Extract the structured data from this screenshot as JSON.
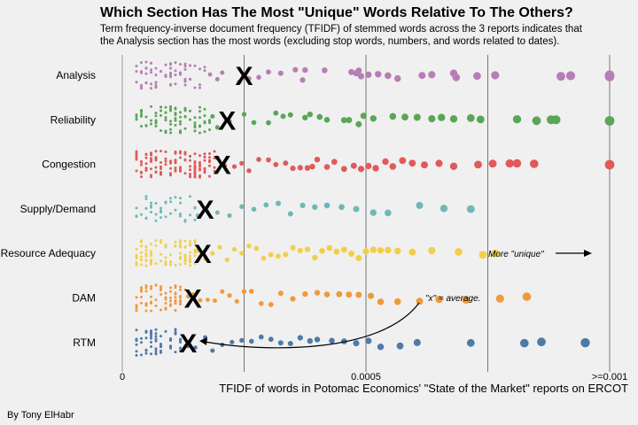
{
  "chart_data": {
    "type": "scatter",
    "title": "Which Section Has The Most \"Unique\" Words Relative To The Others?",
    "subtitle": [
      "Term frequency-inverse document frequency (TFIDF) of stemmed words across the 3 reports indicates that",
      "the Analysis section has the most words (excluding stop words, numbers, and words related to dates)."
    ],
    "xlabel": "TFIDF of words in Potomac Economics' \"State of the Market\" reports on ERCOT",
    "caption": "By Tony ElHabr",
    "xlim": [
      0,
      0.001
    ],
    "x_ticks": [
      {
        "value": 0,
        "label": "0"
      },
      {
        "value": 0.0005,
        "label": "0.0005"
      },
      {
        "value": 0.001,
        "label": ">=0.001"
      }
    ],
    "x_gridlines": [
      0.00025,
      0.0005,
      0.00075,
      0.001
    ],
    "annotations": [
      {
        "text": "More \"unique\"",
        "x": 0.00075,
        "category": "Resource Adequacy"
      },
      {
        "text": "\"x\" = average.",
        "x": 0.000618,
        "category": "DAM"
      }
    ],
    "mean_marker": "X",
    "series": [
      {
        "category": "Analysis",
        "color": "#b77eb5",
        "mean": 0.00025,
        "low_range": [
          2.5e-05,
          0.00017
        ],
        "low_count": 70,
        "x": [
          0.00018,
          0.000195,
          0.000205,
          0.00024,
          0.00026,
          0.00028,
          0.0003,
          0.000325,
          0.000355,
          0.00037,
          0.000375,
          0.000415,
          0.00047,
          0.00048,
          0.000485,
          0.00049,
          0.000505,
          0.000525,
          0.000545,
          0.000565,
          0.000615,
          0.000635,
          0.00068,
          0.000685,
          0.000728,
          0.000765,
          0.0009,
          0.00092,
          0.001,
          0.001
        ]
      },
      {
        "category": "Reliability",
        "color": "#5ba557",
        "mean": 0.000215,
        "low_range": [
          2.5e-05,
          0.00018
        ],
        "low_count": 90,
        "x": [
          0.000185,
          0.000195,
          0.00022,
          0.00025,
          0.00027,
          0.0003,
          0.000315,
          0.00033,
          0.000345,
          0.000375,
          0.000385,
          0.000405,
          0.00042,
          0.000455,
          0.000465,
          0.000485,
          0.000495,
          0.000515,
          0.000555,
          0.00058,
          0.000605,
          0.000635,
          0.000655,
          0.00068,
          0.000715,
          0.000735,
          0.00081,
          0.00085,
          0.00088,
          0.00089,
          0.001
        ]
      },
      {
        "category": "Congestion",
        "color": "#e05a5a",
        "mean": 0.000205,
        "low_range": [
          2.5e-05,
          0.00019
        ],
        "low_count": 130,
        "x": [
          0.000195,
          0.00021,
          0.00023,
          0.000245,
          0.00026,
          0.00028,
          0.0003,
          0.000315,
          0.000335,
          0.00035,
          0.000365,
          0.00038,
          0.00039,
          0.0004,
          0.00042,
          0.000435,
          0.000455,
          0.000475,
          0.00049,
          0.000505,
          0.00052,
          0.00054,
          0.000555,
          0.000575,
          0.000595,
          0.00062,
          0.00065,
          0.00068,
          0.00073,
          0.00076,
          0.000795,
          0.00081,
          0.000845,
          0.001
        ]
      },
      {
        "category": "Supply/Demand",
        "color": "#6fb8b7",
        "mean": 0.00017,
        "low_range": [
          2.5e-05,
          0.00015
        ],
        "low_count": 40,
        "x": [
          0.000155,
          0.000175,
          0.000195,
          0.00022,
          0.000245,
          0.00027,
          0.000295,
          0.00032,
          0.000345,
          0.00037,
          0.000395,
          0.00042,
          0.00045,
          0.00048,
          0.000515,
          0.000545,
          0.00061,
          0.00066,
          0.000715
        ]
      },
      {
        "category": "Resource Adequacy",
        "color": "#f2cf4a",
        "mean": 0.000165,
        "low_range": [
          2.5e-05,
          0.00015
        ],
        "low_count": 90,
        "x": [
          0.000155,
          0.00017,
          0.000185,
          0.0002,
          0.000215,
          0.00023,
          0.000245,
          0.00026,
          0.000275,
          0.00029,
          0.000305,
          0.00032,
          0.000335,
          0.00035,
          0.000365,
          0.00038,
          0.000395,
          0.00041,
          0.000425,
          0.00044,
          0.000455,
          0.00047,
          0.000485,
          0.0005,
          0.000515,
          0.00053,
          0.000545,
          0.000565,
          0.000595,
          0.000635,
          0.00069,
          0.00074,
          0.000765
        ]
      },
      {
        "category": "DAM",
        "color": "#ef9a3b",
        "mean": 0.000145,
        "low_range": [
          2.5e-05,
          0.00013
        ],
        "low_count": 65,
        "x": [
          0.000135,
          0.000145,
          0.00016,
          0.000175,
          0.00019,
          0.000205,
          0.00022,
          0.000235,
          0.00025,
          0.000265,
          0.000285,
          0.000305,
          0.000325,
          0.00035,
          0.000375,
          0.0004,
          0.00042,
          0.000445,
          0.000465,
          0.000485,
          0.00051,
          0.00053,
          0.000565,
          0.00061,
          0.00065,
          0.000705,
          0.000775,
          0.00083
        ]
      },
      {
        "category": "RTM",
        "color": "#4f7aa8",
        "mean": 0.000135,
        "low_range": [
          2.5e-05,
          0.000125
        ],
        "low_count": 60,
        "x": [
          0.000135,
          0.00015,
          0.00017,
          0.000185,
          0.000205,
          0.000225,
          0.000245,
          0.000265,
          0.000285,
          0.000305,
          0.000325,
          0.000345,
          0.000365,
          0.000385,
          0.0004,
          0.00043,
          0.000455,
          0.00048,
          0.000505,
          0.00053,
          0.00057,
          0.000605,
          0.000715,
          0.000825,
          0.00086,
          0.00095
        ]
      }
    ]
  }
}
